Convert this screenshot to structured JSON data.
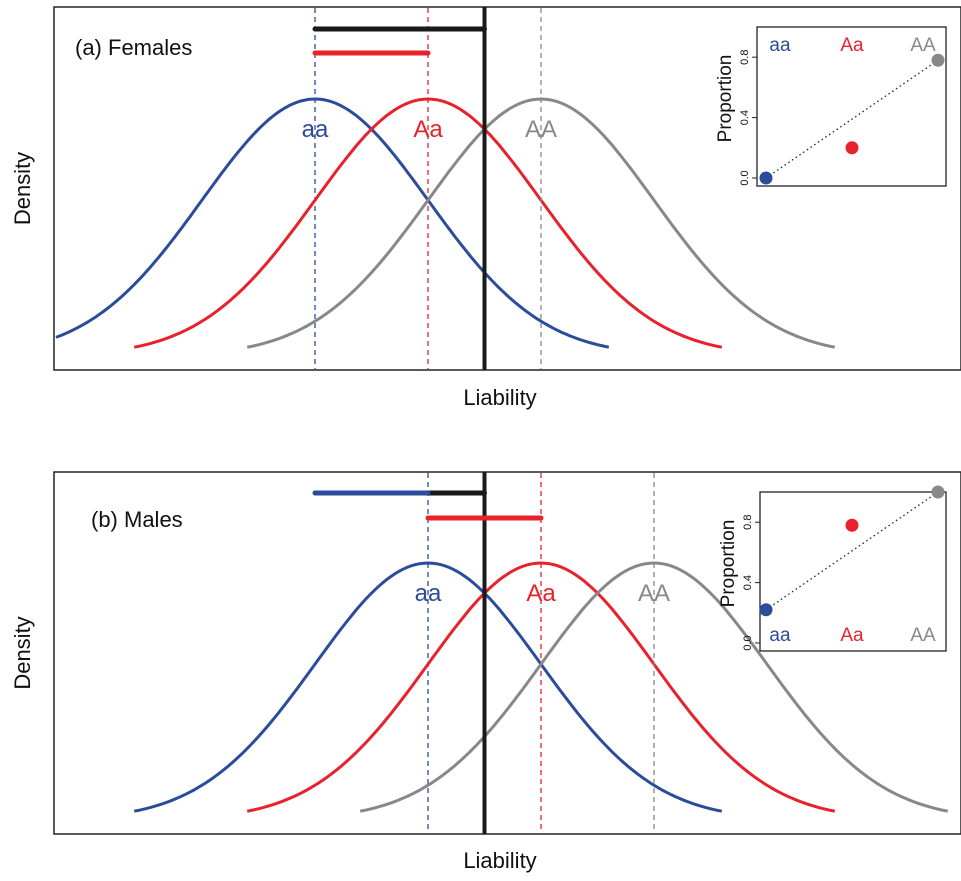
{
  "figure": {
    "axis_label_x": "Liability",
    "axis_label_y": "Density",
    "inset_ylabel": "Proportion"
  },
  "colors": {
    "aa": "#2b4b9b",
    "Aa": "#e8212b",
    "AA": "#888888",
    "threshold": "#1a1a1a"
  },
  "chart_data": [
    {
      "type": "line",
      "panel_label": "(a) Females",
      "xlabel": "Liability",
      "ylabel": "Density",
      "series": [
        {
          "name": "aa",
          "mean": 0.0,
          "sd": 1.0
        },
        {
          "name": "Aa",
          "mean": 1.0,
          "sd": 1.0
        },
        {
          "name": "AA",
          "mean": 2.0,
          "sd": 1.0
        }
      ],
      "threshold": 1.5,
      "bars": [
        {
          "color": "threshold",
          "from": 0.0,
          "to": 1.5,
          "level": 1
        },
        {
          "color": "Aa",
          "from": 0.0,
          "to": 1.0,
          "level": 2
        }
      ],
      "inset": {
        "type": "scatter",
        "ylabel": "Proportion",
        "yticks": [
          "0.0",
          "0.4",
          "0.8"
        ],
        "ylim": [
          0,
          1
        ],
        "labels_position": "top",
        "categories": [
          "aa",
          "Aa",
          "AA"
        ],
        "values": [
          0.0,
          0.2,
          0.78
        ],
        "dotted_line": [
          "aa",
          "AA"
        ]
      }
    },
    {
      "type": "line",
      "panel_label": "(b) Males",
      "xlabel": "Liability",
      "ylabel": "Density",
      "series": [
        {
          "name": "aa",
          "mean": 1.0,
          "sd": 1.0
        },
        {
          "name": "Aa",
          "mean": 2.0,
          "sd": 1.0
        },
        {
          "name": "AA",
          "mean": 3.0,
          "sd": 1.0
        }
      ],
      "threshold": 1.5,
      "bars": [
        {
          "color": "threshold",
          "from": 1.0,
          "to": 1.5,
          "level": 1
        },
        {
          "color": "aa",
          "from": 0.0,
          "to": 1.0,
          "level": 1
        },
        {
          "color": "Aa",
          "from": 1.0,
          "to": 2.0,
          "level": 2
        }
      ],
      "inset": {
        "type": "scatter",
        "ylabel": "Proportion",
        "yticks": [
          "0.0",
          "0.4",
          "0.8"
        ],
        "ylim": [
          0,
          1
        ],
        "labels_position": "bottom",
        "categories": [
          "aa",
          "Aa",
          "AA"
        ],
        "values": [
          0.22,
          0.78,
          1.0
        ],
        "dotted_line": [
          "aa",
          "AA"
        ]
      }
    }
  ]
}
